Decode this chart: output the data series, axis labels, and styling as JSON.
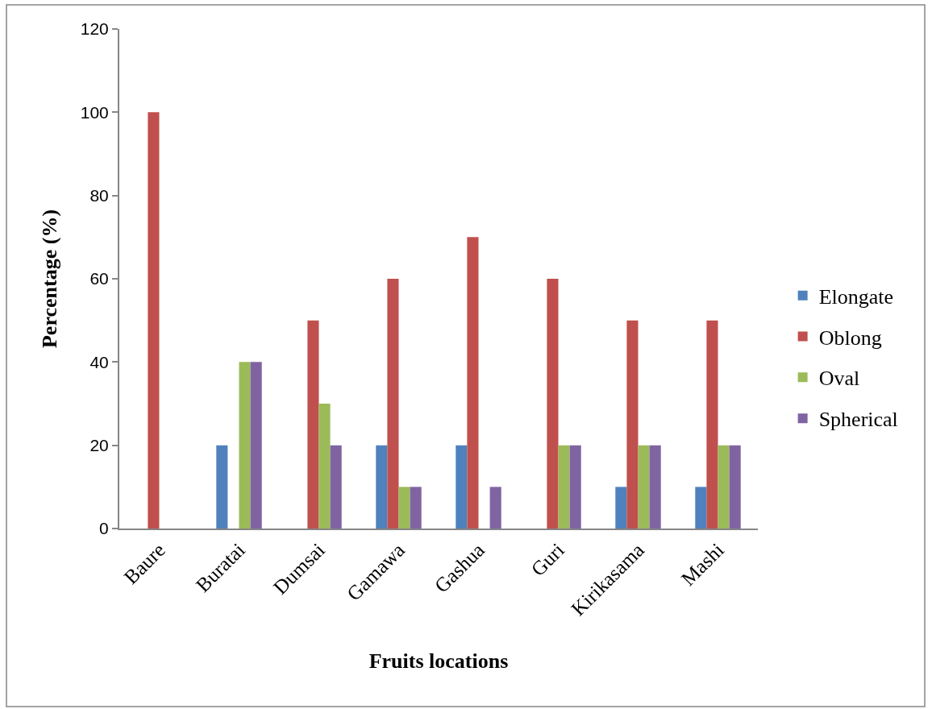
{
  "chart_data": {
    "type": "bar",
    "xlabel": "Fruits locations",
    "ylabel": "Percentage (%)",
    "categories": [
      "Baure",
      "Buratai",
      "Dumsai",
      "Gamawa",
      "Gashua",
      "Guri",
      "Kirikasama",
      "Mashi"
    ],
    "series": [
      {
        "name": "Elongate",
        "color": "#4f81bd",
        "values": [
          0,
          20,
          0,
          20,
          20,
          0,
          10,
          10
        ]
      },
      {
        "name": "Oblong",
        "color": "#c0504d",
        "values": [
          100,
          0,
          50,
          60,
          70,
          60,
          50,
          50
        ]
      },
      {
        "name": "Oval",
        "color": "#9bbb59",
        "values": [
          0,
          40,
          30,
          10,
          0,
          20,
          20,
          20
        ]
      },
      {
        "name": "Spherical",
        "color": "#8064a2",
        "values": [
          0,
          40,
          20,
          10,
          10,
          20,
          20,
          20
        ]
      }
    ],
    "ylim": [
      0,
      120
    ],
    "yticks": [
      0,
      20,
      40,
      60,
      80,
      100,
      120
    ],
    "grid": false,
    "legend": "right"
  }
}
